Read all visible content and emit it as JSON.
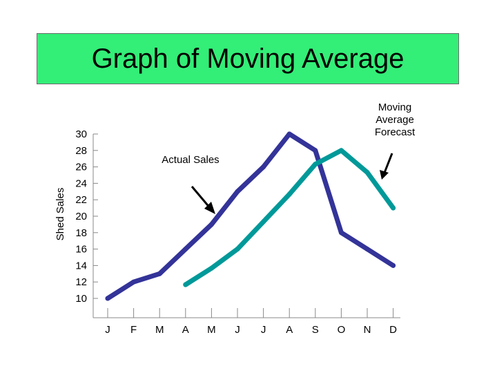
{
  "chart_data": {
    "type": "line",
    "title": "Graph of Moving Average",
    "xlabel": "",
    "ylabel": "Shed Sales",
    "categories": [
      "J",
      "F",
      "M",
      "A",
      "M",
      "J",
      "J",
      "A",
      "S",
      "O",
      "N",
      "D"
    ],
    "ylim": [
      10,
      30
    ],
    "yticks": [
      30,
      28,
      26,
      24,
      22,
      20,
      18,
      16,
      14,
      12,
      10
    ],
    "series": [
      {
        "name": "Actual Sales",
        "color": "#333399",
        "values": [
          10,
          12,
          13,
          16,
          19,
          23,
          26,
          30,
          28,
          18,
          16,
          14
        ]
      },
      {
        "name": "Moving Average Forecast",
        "color": "#009999",
        "values": [
          null,
          null,
          null,
          11.67,
          13.67,
          16,
          19.33,
          22.67,
          26.33,
          28,
          25.33,
          21
        ]
      }
    ],
    "annotations": [
      {
        "text": "Actual Sales",
        "series": "Actual Sales"
      },
      {
        "text": "Moving Average Forecast",
        "series": "Moving Average Forecast"
      }
    ],
    "grid": false,
    "legend": "none"
  }
}
